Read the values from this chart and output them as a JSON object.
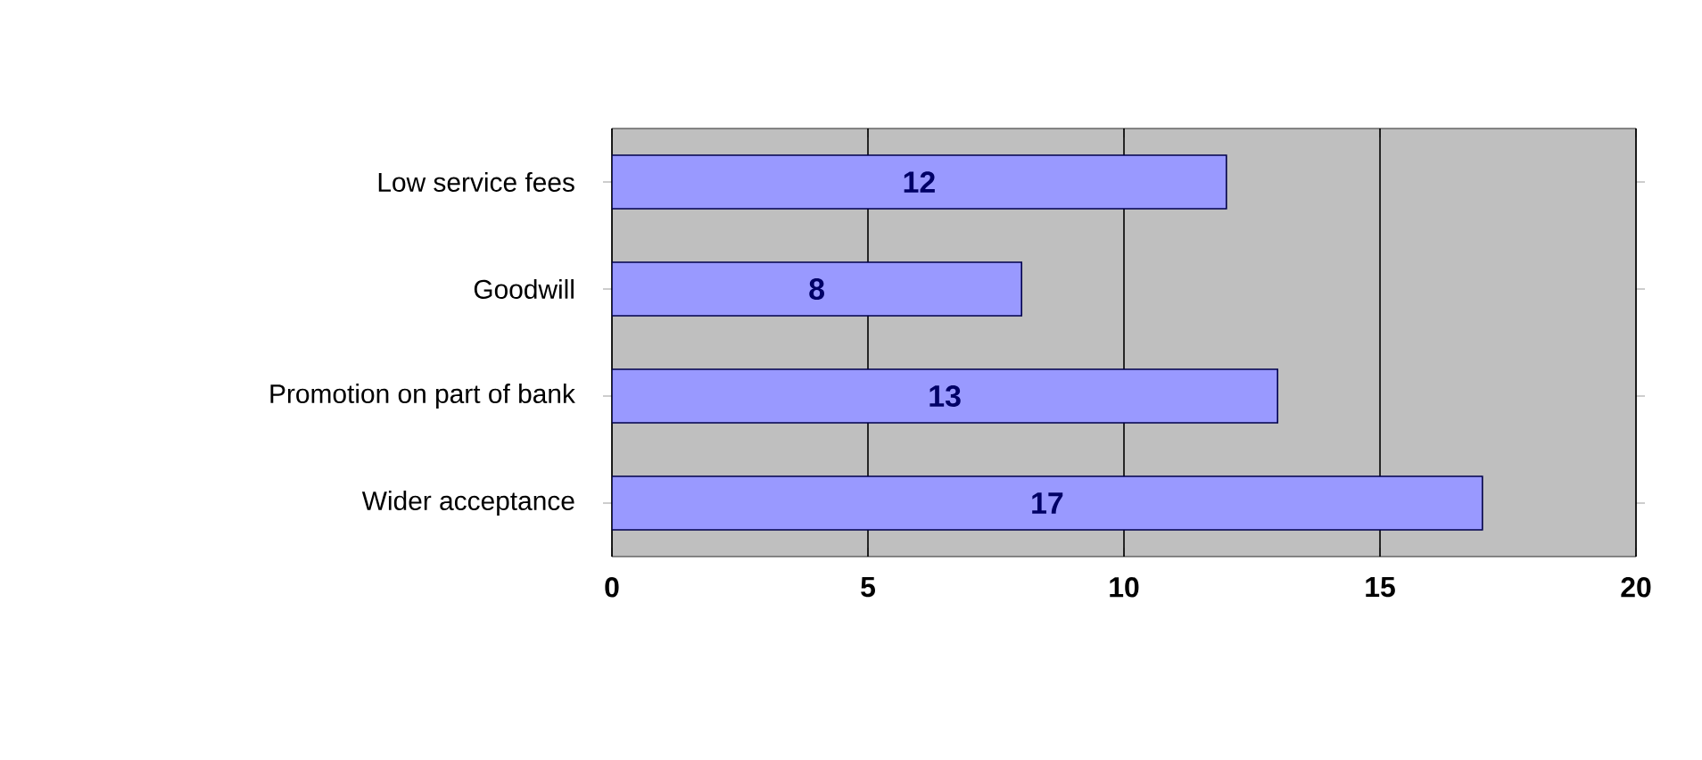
{
  "chart_data": {
    "type": "bar",
    "orientation": "horizontal",
    "categories": [
      "Low service fees",
      "Goodwill",
      "Promotion on part of bank",
      "Wider acceptance"
    ],
    "values": [
      12,
      8,
      13,
      17
    ],
    "color": "#9999ff",
    "xlim": [
      0,
      20
    ],
    "xticks": [
      0,
      5,
      10,
      15,
      20
    ],
    "grid": "x",
    "data_labels": true
  }
}
